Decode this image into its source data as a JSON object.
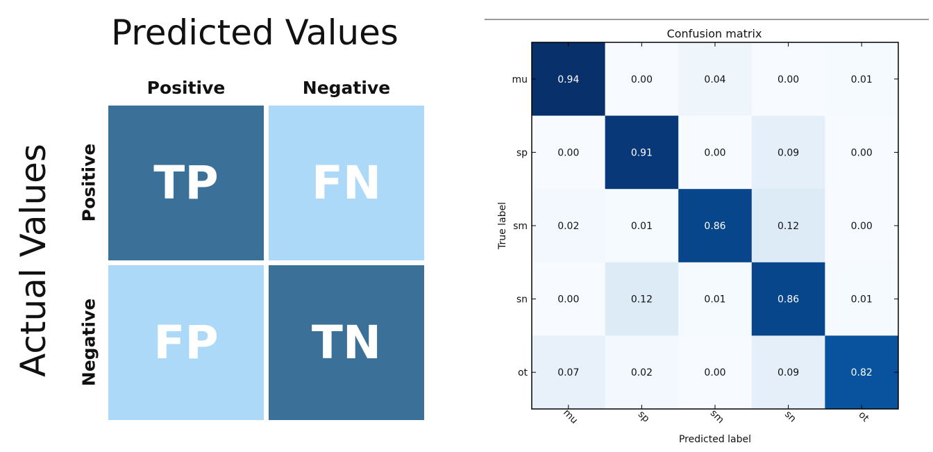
{
  "left": {
    "title": "Predicted Values",
    "side_title": "Actual Values",
    "col_headers": [
      "Positive",
      "Negative"
    ],
    "row_headers": [
      "Positive",
      "Negative"
    ],
    "cells": [
      "TP",
      "FN",
      "FP",
      "TN"
    ],
    "colors": {
      "dark": "#3b7198",
      "light": "#acd9f8"
    }
  },
  "chart_data": {
    "type": "heatmap",
    "title": "Confusion matrix",
    "xlabel": "Predicted label",
    "ylabel": "True label",
    "x": [
      "mu",
      "sp",
      "sm",
      "sn",
      "ot"
    ],
    "y": [
      "mu",
      "sp",
      "sm",
      "sn",
      "ot"
    ],
    "values": [
      [
        "0.94",
        "0.00",
        "0.04",
        "0.00",
        "0.01"
      ],
      [
        "0.00",
        "0.91",
        "0.00",
        "0.09",
        "0.00"
      ],
      [
        "0.02",
        "0.01",
        "0.86",
        "0.12",
        "0.00"
      ],
      [
        "0.00",
        "0.12",
        "0.01",
        "0.86",
        "0.01"
      ],
      [
        "0.07",
        "0.02",
        "0.00",
        "0.09",
        "0.82"
      ]
    ],
    "colormap": "Blues"
  }
}
